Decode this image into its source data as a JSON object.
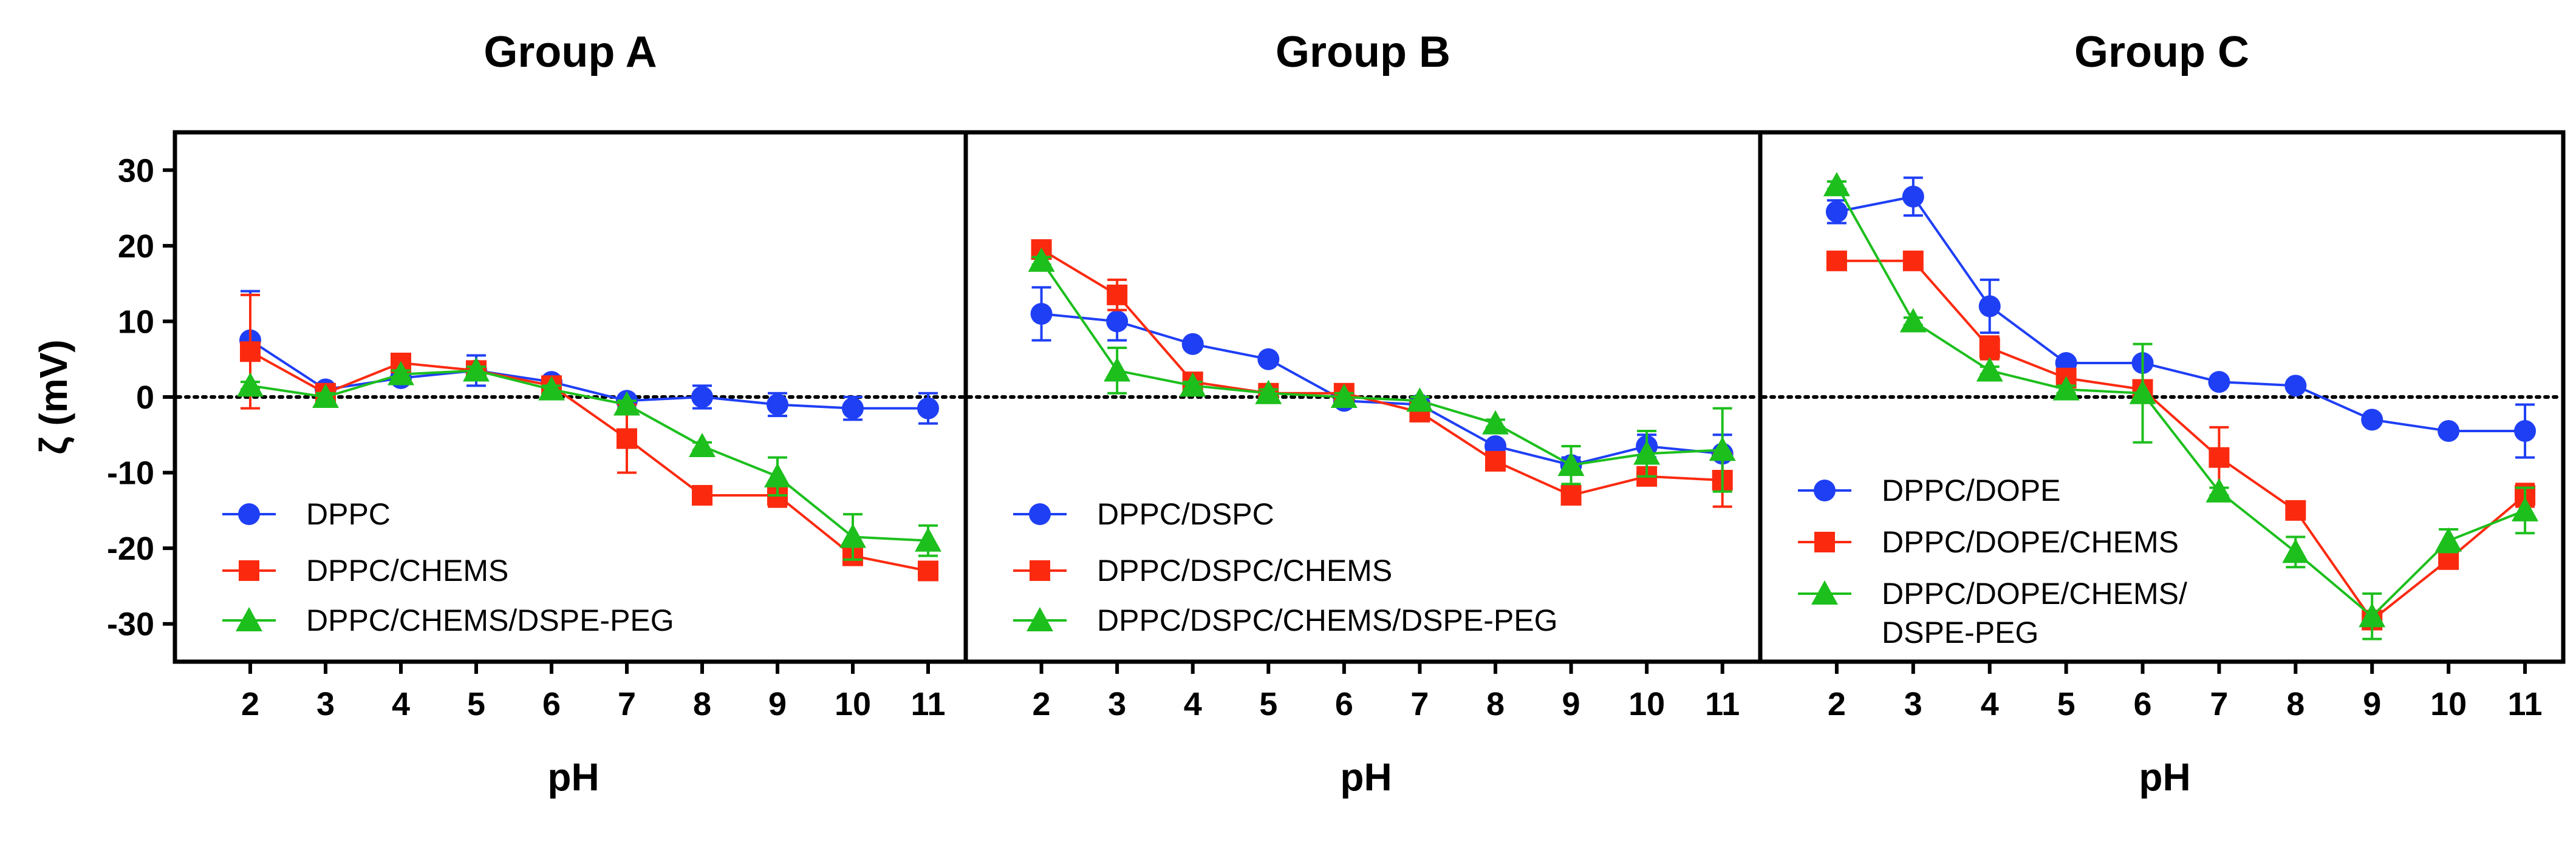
{
  "chart_data": [
    {
      "type": "line",
      "title": "Group A",
      "xlabel": "pH",
      "ylabel": "ζ (mV)",
      "x": [
        2,
        3,
        4,
        5,
        6,
        7,
        8,
        9,
        10,
        11
      ],
      "xlim": [
        1,
        11.5
      ],
      "ylim": [
        -35,
        35
      ],
      "yticks": [
        30,
        20,
        10,
        0,
        -10,
        -20,
        -30
      ],
      "zero_line": "dotted",
      "legend": "bottom-left",
      "series": [
        {
          "name": "DPPC",
          "marker": "circle",
          "color": "#1f3ff5",
          "values": [
            7.5,
            1.0,
            2.5,
            3.5,
            2.0,
            -0.5,
            0.0,
            -1.0,
            -1.5,
            -1.5
          ],
          "errors": [
            6.5,
            0.5,
            0.5,
            2.0,
            0.5,
            0.5,
            1.5,
            1.5,
            1.5,
            2.0
          ]
        },
        {
          "name": "DPPC/CHEMS",
          "marker": "square",
          "color": "#fb2a0f",
          "values": [
            6.0,
            0.5,
            4.5,
            3.5,
            1.5,
            -5.5,
            -13.0,
            -13.0,
            -21.0,
            -23.0
          ],
          "errors": [
            7.5,
            0.5,
            0.5,
            1.0,
            0.5,
            4.5,
            0.5,
            1.5,
            0.5,
            1.0
          ]
        },
        {
          "name": "DPPC/CHEMS/DSPE-PEG",
          "marker": "triangle",
          "color": "#1dbf1d",
          "values": [
            1.5,
            0.0,
            3.0,
            3.5,
            1.0,
            -1.0,
            -6.5,
            -10.5,
            -18.5,
            -19.0
          ],
          "errors": [
            0.5,
            0.5,
            0.5,
            0.5,
            0.5,
            0.5,
            0.5,
            2.5,
            3.0,
            2.0
          ]
        }
      ]
    },
    {
      "type": "line",
      "title": "Group B",
      "xlabel": "pH",
      "ylabel": "",
      "x": [
        2,
        3,
        4,
        5,
        6,
        7,
        8,
        9,
        10,
        11
      ],
      "xlim": [
        1,
        11.5
      ],
      "ylim": [
        -35,
        35
      ],
      "zero_line": "dotted",
      "legend": "bottom-left",
      "series": [
        {
          "name": "DPPC/DSPC",
          "marker": "circle",
          "color": "#1f3ff5",
          "values": [
            11.0,
            10.0,
            7.0,
            5.0,
            -0.5,
            -1.0,
            -6.5,
            -9.0,
            -6.5,
            -7.5
          ],
          "errors": [
            3.5,
            2.5,
            0.5,
            0.5,
            0.5,
            0.5,
            0.5,
            1.0,
            1.5,
            2.5
          ]
        },
        {
          "name": "DPPC/DSPC/CHEMS",
          "marker": "square",
          "color": "#fb2a0f",
          "values": [
            19.5,
            13.5,
            2.0,
            0.5,
            0.5,
            -2.0,
            -8.5,
            -13.0,
            -10.5,
            -11.0
          ],
          "errors": [
            0.5,
            2.0,
            0.5,
            0.5,
            0.5,
            0.5,
            0.5,
            1.0,
            0.5,
            3.5
          ]
        },
        {
          "name": "DPPC/DSPC/CHEMS/DSPE-PEG",
          "marker": "triangle",
          "color": "#1dbf1d",
          "values": [
            18.0,
            3.5,
            1.5,
            0.5,
            0.0,
            -0.5,
            -3.5,
            -9.0,
            -7.5,
            -7.0
          ],
          "errors": [
            0.5,
            3.0,
            0.5,
            0.5,
            0.5,
            0.5,
            0.5,
            2.5,
            3.0,
            5.5
          ]
        }
      ]
    },
    {
      "type": "line",
      "title": "Group C",
      "xlabel": "pH",
      "ylabel": "",
      "x": [
        2,
        3,
        4,
        5,
        6,
        7,
        8,
        9,
        10,
        11
      ],
      "xlim": [
        1,
        11.5
      ],
      "ylim": [
        -35,
        35
      ],
      "zero_line": "dotted",
      "legend": "bottom-left",
      "series": [
        {
          "name": "DPPC/DOPE",
          "marker": "circle",
          "color": "#1f3ff5",
          "values": [
            24.5,
            26.5,
            12.0,
            4.5,
            4.5,
            2.0,
            1.5,
            -3.0,
            -4.5,
            -4.5
          ],
          "errors": [
            1.5,
            2.5,
            3.5,
            0.5,
            0.5,
            0.5,
            0.5,
            0.5,
            0.5,
            3.5
          ]
        },
        {
          "name": "DPPC/DOPE/CHEMS",
          "marker": "square",
          "color": "#fb2a0f",
          "values": [
            18.0,
            18.0,
            6.5,
            2.5,
            1.0,
            -8.0,
            -15.0,
            -29.5,
            -21.5,
            -13.0
          ],
          "errors": [
            0.5,
            0.5,
            1.5,
            0.5,
            0.5,
            4.0,
            0.5,
            0.5,
            1.0,
            1.5
          ]
        },
        {
          "name": "DPPC/DOPE/CHEMS/\nDSPE-PEG",
          "marker": "triangle",
          "color": "#1dbf1d",
          "values": [
            28.0,
            10.0,
            3.5,
            1.0,
            0.5,
            -12.5,
            -20.5,
            -29.0,
            -19.0,
            -15.0
          ],
          "errors": [
            0.5,
            0.5,
            0.5,
            0.5,
            6.5,
            0.5,
            2.0,
            3.0,
            1.5,
            3.0
          ]
        }
      ]
    }
  ]
}
